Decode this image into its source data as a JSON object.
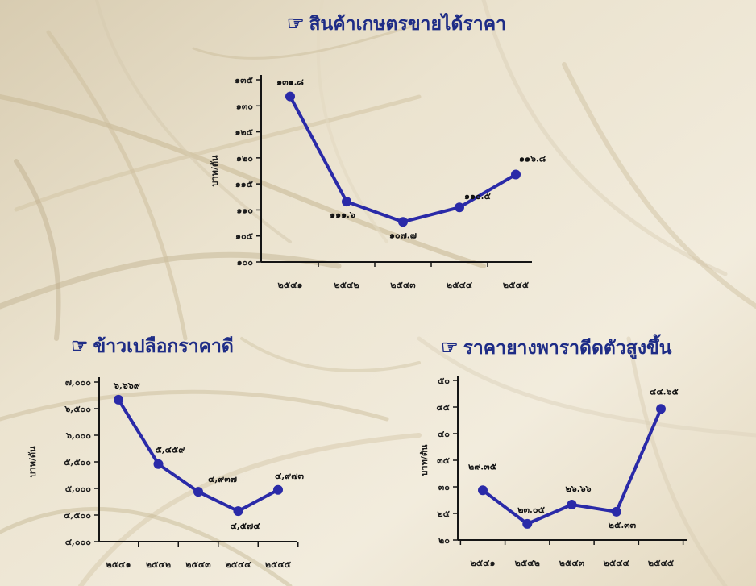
{
  "colors": {
    "line": "#2a2aa8",
    "title": "#1e2c86",
    "axis": "#151515",
    "background": "#e9e1cc"
  },
  "title_icon": "☞",
  "chart_data": [
    {
      "id": "farm-products",
      "type": "line",
      "title": "สินค้าเกษตรขายได้ราคา",
      "title_icon": "pointing-hand-icon",
      "xlabel": "",
      "ylabel": "บาท/ตัน",
      "categories": [
        "๒๕๔๑",
        "๒๕๔๒",
        "๒๕๔๓",
        "๒๕๔๔",
        "๒๕๔๕"
      ],
      "values": [
        131.8,
        111.6,
        107.7,
        110.5,
        116.8
      ],
      "data_labels": [
        "๑๓๑.๘",
        "๑๑๑.๖",
        "๑๐๗.๗",
        "๑๑๐.๕",
        "๑๑๖.๘"
      ],
      "ylim": [
        100,
        135
      ],
      "yticks": [
        100,
        105,
        110,
        115,
        120,
        125,
        130,
        135
      ],
      "ytick_labels": [
        "๑๐๐",
        "๑๐๕",
        "๑๑๐",
        "๑๑๕",
        "๑๒๐",
        "๑๒๕",
        "๑๓๐",
        "๑๓๕"
      ],
      "grid": false,
      "legend": "none"
    },
    {
      "id": "paddy",
      "type": "line",
      "title": "ข้าวเปลือกราคาดี",
      "title_icon": "pointing-hand-icon",
      "xlabel": "",
      "ylabel": "บาท/ตัน",
      "categories": [
        "๒๕๔๑",
        "๒๕๔๒",
        "๒๕๔๓",
        "๒๕๔๔",
        "๒๕๔๕"
      ],
      "values": [
        6669,
        5459,
        4937,
        4574,
        4973
      ],
      "data_labels": [
        "๖,๖๖๙",
        "๕,๔๕๙",
        "๔,๙๓๗",
        "๔,๕๗๔",
        "๔,๙๗๓"
      ],
      "ylim": [
        4000,
        7000
      ],
      "yticks": [
        4000,
        4500,
        5000,
        5500,
        6000,
        6500,
        7000
      ],
      "ytick_labels": [
        "๔,๐๐๐",
        "๔,๕๐๐",
        "๕,๐๐๐",
        "๕,๕๐๐",
        "๖,๐๐๐",
        "๖,๕๐๐",
        "๗,๐๐๐"
      ],
      "grid": false,
      "legend": "none"
    },
    {
      "id": "rubber",
      "type": "line",
      "title": "ราคายางพาราดีดตัวสูงขึ้น",
      "title_icon": "pointing-hand-icon",
      "xlabel": "",
      "ylabel": "บาท/ตัน",
      "categories": [
        "๒๕๔๑",
        "๒๕๔๒",
        "๒๕๔๓",
        "๒๕๔๔",
        "๒๕๔๕"
      ],
      "values": [
        29.35,
        23.05,
        26.66,
        25.33,
        44.65
      ],
      "data_labels": [
        "๒๙.๓๕",
        "๒๓.๐๕",
        "๒๖.๖๖",
        "๒๕.๓๓",
        "๔๔.๖๕"
      ],
      "ylim": [
        20,
        50
      ],
      "yticks": [
        20,
        25,
        30,
        35,
        40,
        45,
        50
      ],
      "ytick_labels": [
        "๒๐",
        "๒๕",
        "๓๐",
        "๓๕",
        "๔๐",
        "๔๕",
        "๕๐"
      ],
      "grid": false,
      "legend": "none"
    }
  ]
}
